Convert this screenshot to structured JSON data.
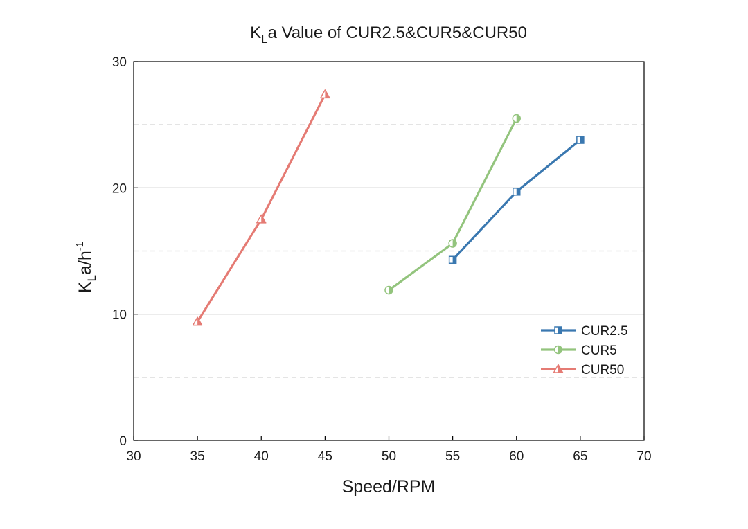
{
  "chart_data": {
    "type": "line",
    "title_main": "K",
    "title_sub": "L",
    "title_rest": "a Value of CUR2.5&CUR5&CUR50",
    "xlabel": "Speed/RPM",
    "ylabel_main": "K",
    "ylabel_sub": "L",
    "ylabel_rest": "a/h",
    "ylabel_sup": "-1",
    "xlim": [
      30,
      70
    ],
    "ylim": [
      0,
      30
    ],
    "xticks": [
      "30",
      "35",
      "40",
      "45",
      "50",
      "55",
      "60",
      "65",
      "70"
    ],
    "yticks": [
      "0",
      "10",
      "20",
      "30"
    ],
    "major_grid_y": [
      10,
      20
    ],
    "minor_grid_y": [
      5,
      15,
      25
    ],
    "legend_position": "right",
    "series": [
      {
        "name": "CUR2.5",
        "color": "#3a78b0",
        "marker": "square",
        "x": [
          55,
          60,
          65
        ],
        "y": [
          14.3,
          19.7,
          23.8
        ]
      },
      {
        "name": "CUR5",
        "color": "#93c47d",
        "marker": "circle",
        "x": [
          50,
          55,
          60
        ],
        "y": [
          11.9,
          15.6,
          25.5
        ]
      },
      {
        "name": "CUR50",
        "color": "#e57b74",
        "marker": "triangle",
        "x": [
          35,
          40,
          45
        ],
        "y": [
          9.4,
          17.5,
          27.4
        ]
      }
    ]
  }
}
